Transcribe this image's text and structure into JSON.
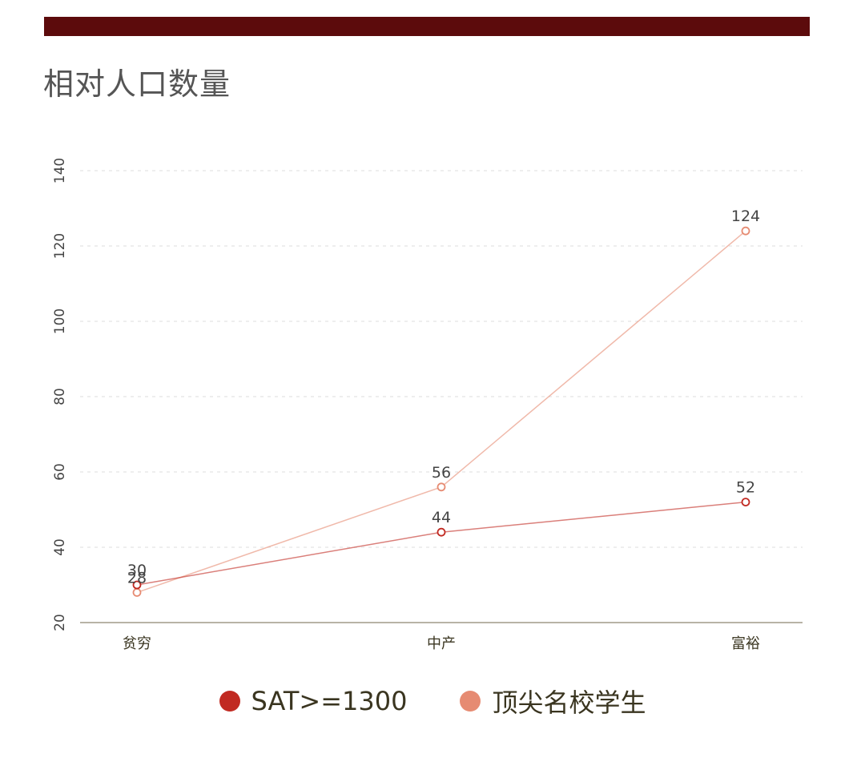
{
  "header": {
    "bar_color": "#5c0b0c",
    "title": "相对人口数量"
  },
  "chart_data": {
    "type": "line",
    "title": "相对人口数量",
    "xlabel": "",
    "ylabel": "",
    "categories": [
      "贫穷",
      "中产",
      "富裕"
    ],
    "series": [
      {
        "name": "SAT>=1300",
        "values": [
          30,
          44,
          52
        ],
        "color": "#c12a22"
      },
      {
        "name": "顶尖名校学生",
        "values": [
          28,
          56,
          124
        ],
        "color": "#e68b72"
      }
    ],
    "ylim": [
      20,
      140
    ],
    "yticks": [
      20,
      40,
      60,
      80,
      100,
      120,
      140
    ],
    "grid": true,
    "legend_position": "bottom",
    "data_labels": true
  },
  "legend": {
    "items": [
      {
        "label": "SAT>=1300",
        "color": "#c12a22"
      },
      {
        "label": "顶尖名校学生",
        "color": "#e68b72"
      }
    ]
  }
}
